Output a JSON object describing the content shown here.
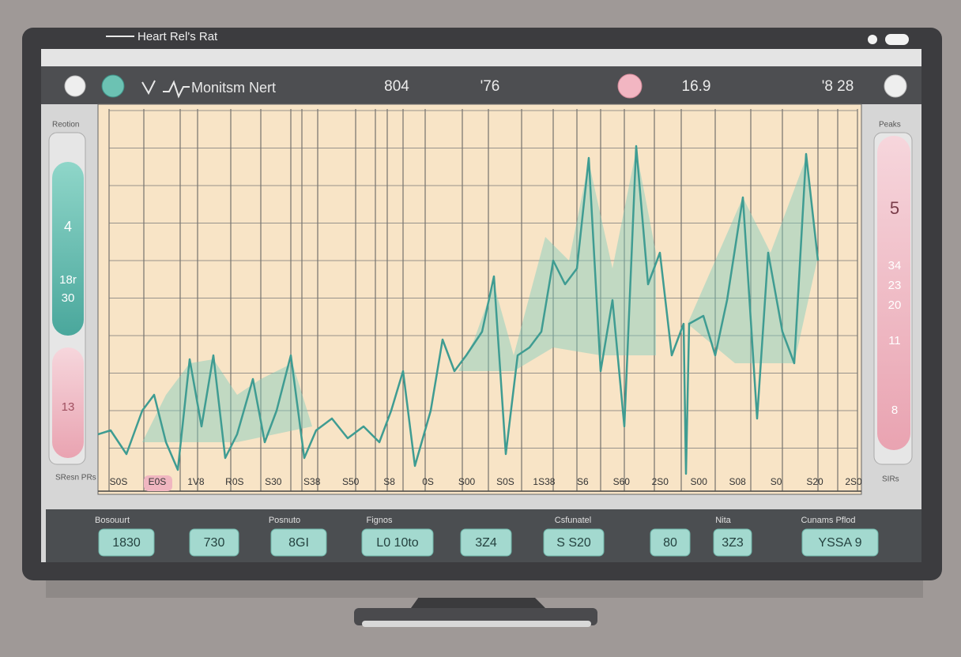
{
  "window_title": "Heart Rel's Rat",
  "header": {
    "title": "Monitsm Nert",
    "readings": [
      "804",
      "'76",
      "16.9",
      "'8 28"
    ]
  },
  "left_panel": {
    "label": "Reotion",
    "values": [
      "4",
      "18r",
      "30",
      "13"
    ],
    "footer": "SResn PRs"
  },
  "right_panel": {
    "label": "Peaks",
    "values": [
      "5",
      "34",
      "23",
      "20",
      "11",
      "8"
    ],
    "footer": "SIRs"
  },
  "x_labels": [
    "S0S",
    "E0S",
    "1V8",
    "R0S",
    "S30",
    "S38",
    "S50",
    "S8",
    "0S",
    "S00",
    "S0S",
    "1S38",
    "S6",
    "S60",
    "2S0",
    "S00",
    "S08",
    "S0",
    "S20",
    "2S0"
  ],
  "bottom": {
    "labels": [
      "Bosouurt",
      "Posnuto",
      "Fignos",
      "Csfunatel",
      "Nita",
      "Cunams Pflod"
    ],
    "buttons": [
      "1830",
      "730",
      "8GI",
      "L0 10to",
      "3Z4",
      "S S20",
      "80",
      "3Z3",
      "YSSA 9"
    ]
  }
}
